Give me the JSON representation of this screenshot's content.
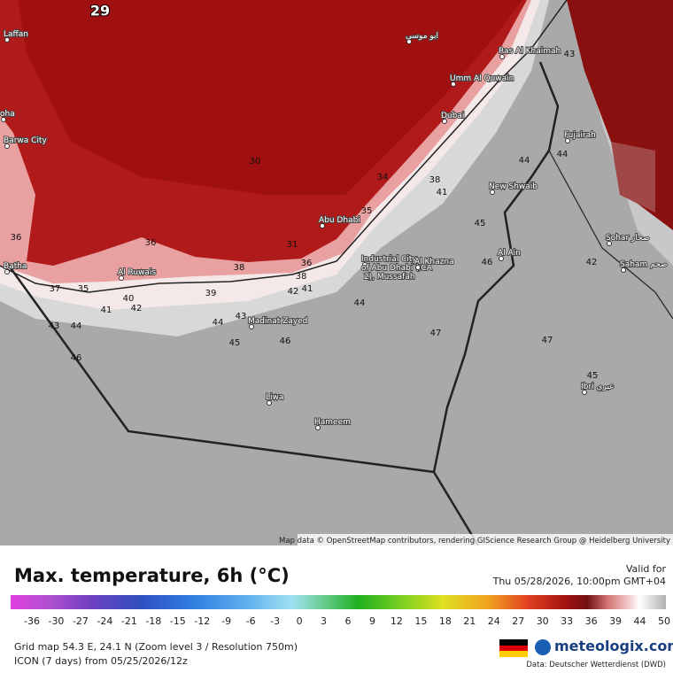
{
  "map": {
    "attribution": "Map data © OpenStreetMap contributors, rendering GIScience Research Group @ Heidelberg University",
    "places": [
      "Laffan",
      "oha",
      "Barwa City",
      "Batha",
      "Al Ruwais",
      "Abu Dhabi",
      "Industrial City of Abu Dhabi (ICAD 2), Mussafah",
      "Al Khazna",
      "Madinat Zayed",
      "Liwa",
      "Hameem",
      "Dubai",
      "Umm Al Quwain",
      "Ras Al Khaimah",
      "Fujairah",
      "New Shwaib",
      "Al Ain",
      "Sohar صحار",
      "Saham صحم",
      "Ibri عبري",
      "ابو موسى"
    ],
    "contour_labels": [
      "29",
      "30",
      "36",
      "36",
      "37",
      "35",
      "40",
      "41",
      "42",
      "39",
      "38",
      "38",
      "41",
      "42",
      "44",
      "43",
      "44",
      "45",
      "46",
      "43",
      "44",
      "46",
      "47",
      "47",
      "45",
      "46",
      "42",
      "45",
      "44",
      "44",
      "43",
      "34",
      "38",
      "41",
      "35",
      "31",
      "36"
    ]
  },
  "legend": {
    "title": "Max. temperature, 6h (°C)",
    "valid_label": "Valid for",
    "valid_time": "Thu 05/28/2026, 10:00pm GMT+04",
    "scale": [
      "-36",
      "-30",
      "-27",
      "-24",
      "-21",
      "-18",
      "-15",
      "-12",
      "-9",
      "-6",
      "-3",
      "0",
      "3",
      "6",
      "9",
      "12",
      "15",
      "18",
      "21",
      "24",
      "27",
      "30",
      "33",
      "36",
      "39",
      "44",
      "50"
    ]
  },
  "footer": {
    "grid": "Grid map 54.3 E, 24.1 N (Zoom level 3 / Resolution 750m)",
    "model": "ICON (7 days) from 05/25/2026/12z",
    "brand": "meteologix.com",
    "source": "Data: Deutscher Wetterdienst (DWD)"
  }
}
